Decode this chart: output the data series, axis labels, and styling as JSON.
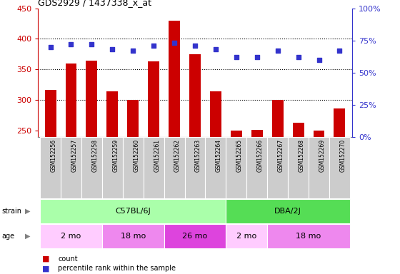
{
  "title": "GDS2929 / 1437338_x_at",
  "samples": [
    "GSM152256",
    "GSM152257",
    "GSM152258",
    "GSM152259",
    "GSM152260",
    "GSM152261",
    "GSM152262",
    "GSM152263",
    "GSM152264",
    "GSM152265",
    "GSM152266",
    "GSM152267",
    "GSM152268",
    "GSM152269",
    "GSM152270"
  ],
  "counts": [
    317,
    360,
    364,
    315,
    300,
    363,
    430,
    375,
    314,
    251,
    252,
    301,
    263,
    251,
    287
  ],
  "percentile_ranks": [
    70,
    72,
    72,
    68,
    67,
    71,
    73,
    71,
    68,
    62,
    62,
    67,
    62,
    60,
    67
  ],
  "ymin": 240,
  "ymax": 450,
  "yticks": [
    250,
    300,
    350,
    400,
    450
  ],
  "y2ticks_vals": [
    0,
    25,
    50,
    75,
    100
  ],
  "y2ticks_labels": [
    "0%",
    "25%",
    "50%",
    "75%",
    "100%"
  ],
  "bar_color": "#cc0000",
  "dot_color": "#3333cc",
  "bar_bottom": 240,
  "strain_groups": [
    {
      "label": "C57BL/6J",
      "start": 0,
      "end": 9,
      "color": "#aaffaa"
    },
    {
      "label": "DBA/2J",
      "start": 9,
      "end": 15,
      "color": "#55dd55"
    }
  ],
  "age_groups": [
    {
      "label": "2 mo",
      "start": 0,
      "end": 3,
      "color": "#ffccff"
    },
    {
      "label": "18 mo",
      "start": 3,
      "end": 6,
      "color": "#ee88ee"
    },
    {
      "label": "26 mo",
      "start": 6,
      "end": 9,
      "color": "#dd44dd"
    },
    {
      "label": "2 mo",
      "start": 9,
      "end": 11,
      "color": "#ffccff"
    },
    {
      "label": "18 mo",
      "start": 11,
      "end": 15,
      "color": "#ee88ee"
    }
  ],
  "tick_label_color": "#cc0000",
  "right_axis_color": "#3333cc",
  "grid_color": "#000000",
  "xticklabel_bg": "#cccccc",
  "border_color": "#888888"
}
